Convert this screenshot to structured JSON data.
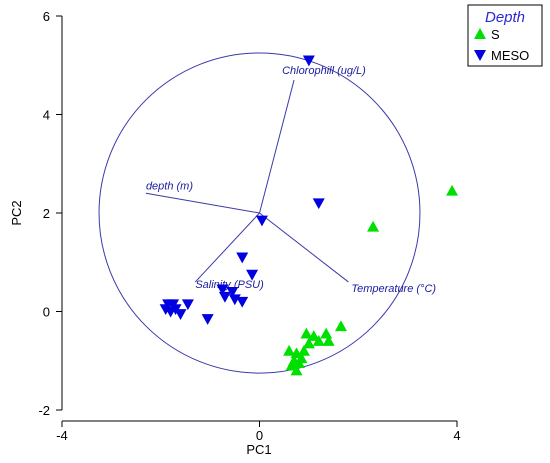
{
  "chart_data": {
    "type": "scatter",
    "xlabel": "PC1",
    "ylabel": "PC2",
    "xlim": [
      -4,
      4
    ],
    "ylim": [
      -2,
      6
    ],
    "x_ticks": [
      "-4",
      "0",
      "4"
    ],
    "y_ticks": [
      "-2",
      "0",
      "2",
      "4",
      "6"
    ],
    "legend": {
      "title": "Depth",
      "placement": "top-right"
    },
    "correlation_circle": {
      "center": [
        0,
        2
      ],
      "radius": 3.25
    },
    "vectors": [
      {
        "label": "Chlorophill (ug/L)",
        "end": [
          0.7,
          4.7
        ]
      },
      {
        "label": "depth (m)",
        "end": [
          -2.3,
          2.4
        ]
      },
      {
        "label": "Salinity (PSU)",
        "end": [
          -1.3,
          0.6
        ]
      },
      {
        "label": "Temperature (°C)",
        "end": [
          1.8,
          0.6
        ]
      }
    ],
    "series": [
      {
        "name": "S",
        "marker": "triangle-up",
        "color": "#00e000",
        "points": [
          [
            3.9,
            2.45
          ],
          [
            2.3,
            1.72
          ],
          [
            1.65,
            -0.3
          ],
          [
            1.35,
            -0.45
          ],
          [
            1.4,
            -0.6
          ],
          [
            1.1,
            -0.5
          ],
          [
            1.2,
            -0.6
          ],
          [
            0.95,
            -0.45
          ],
          [
            1.0,
            -0.65
          ],
          [
            0.9,
            -0.8
          ],
          [
            0.85,
            -0.95
          ],
          [
            0.6,
            -0.8
          ],
          [
            0.75,
            -0.85
          ],
          [
            0.7,
            -1.0
          ],
          [
            0.65,
            -1.1
          ],
          [
            0.8,
            -1.05
          ],
          [
            0.75,
            -1.2
          ]
        ]
      },
      {
        "name": "MESO",
        "marker": "triangle-down",
        "color": "#0000e0",
        "points": [
          [
            1.0,
            5.1
          ],
          [
            1.2,
            2.2
          ],
          [
            0.05,
            1.85
          ],
          [
            -0.35,
            1.1
          ],
          [
            -0.15,
            0.75
          ],
          [
            -0.75,
            0.45
          ],
          [
            -0.7,
            0.3
          ],
          [
            -0.55,
            0.4
          ],
          [
            -0.5,
            0.25
          ],
          [
            -0.35,
            0.2
          ],
          [
            -1.45,
            0.15
          ],
          [
            -1.05,
            -0.15
          ],
          [
            -1.85,
            0.15
          ],
          [
            -1.75,
            0.15
          ],
          [
            -1.9,
            0.05
          ],
          [
            -1.8,
            0.0
          ],
          [
            -1.7,
            0.05
          ],
          [
            -1.6,
            -0.05
          ]
        ]
      }
    ]
  }
}
